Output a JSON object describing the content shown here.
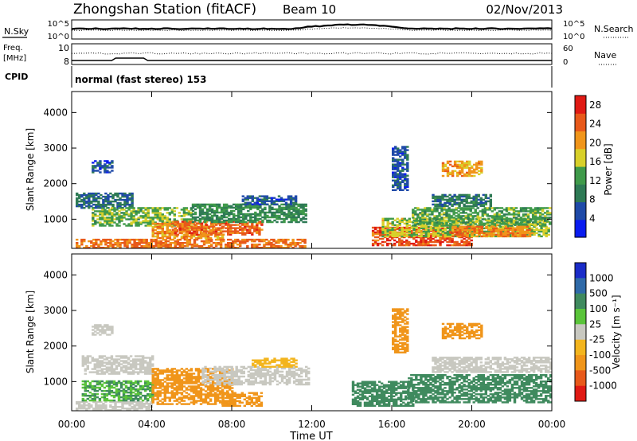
{
  "header": {
    "title": "Zhongshan Station (fitACF)",
    "beam": "Beam 10",
    "date": "02/Nov/2013"
  },
  "top_panels": {
    "nsky_label": "N.Sky",
    "nsky_ticks": [
      "10^5",
      "10^0"
    ],
    "nsearch_label": "N.Search",
    "nsearch_ticks": [
      "10^5",
      "10^0"
    ],
    "freq_label_1": "Freq.",
    "freq_label_2": "[MHz]",
    "freq_ticks": [
      "10",
      "8"
    ],
    "nave_label": "Nave",
    "nave_ticks": [
      "60",
      "0"
    ],
    "cpid_label": "CPID",
    "cpid_text": "normal (fast stereo) 153"
  },
  "colors": {
    "power_scale": [
      "#0a1cf0",
      "#1f4aa8",
      "#2e7a55",
      "#3f9a4a",
      "#d8d02a",
      "#f0951a",
      "#e8591a",
      "#e01a14"
    ],
    "velocity_scale": [
      "#e01a14",
      "#e8591a",
      "#f0951a",
      "#f3b51e",
      "#c8c8c0",
      "#5ac43a",
      "#3f8a5e",
      "#2f6aa8",
      "#1a2cc8"
    ]
  },
  "chart_data": [
    {
      "type": "heatmap",
      "panel": "power",
      "ylabel": "Slant Range [km]",
      "xlabel": "Time UT",
      "x_ticks": [
        "00:00",
        "04:00",
        "08:00",
        "12:00",
        "16:00",
        "20:00",
        "00:00"
      ],
      "y_ticks": [
        "1000",
        "2000",
        "3000",
        "4000"
      ],
      "ylim": [
        180,
        4590
      ],
      "colorbar_label": "Power [dB]",
      "colorbar_ticks": [
        "4",
        "8",
        "12",
        "16",
        "20",
        "24",
        "28"
      ],
      "colorbar_range": [
        0,
        30
      ],
      "regions": [
        {
          "t0": 0.2,
          "t1": 11.7,
          "r0": 180,
          "r1": 420,
          "v": 23
        },
        {
          "t0": 0.2,
          "t1": 3.0,
          "r0": 1300,
          "r1": 1750,
          "v": 8
        },
        {
          "t0": 1.0,
          "t1": 6.0,
          "r0": 800,
          "r1": 1300,
          "v": 14
        },
        {
          "t0": 4.0,
          "t1": 7.5,
          "r0": 450,
          "r1": 900,
          "v": 21
        },
        {
          "t0": 5.0,
          "t1": 9.5,
          "r0": 550,
          "r1": 950,
          "v": 24
        },
        {
          "t0": 6.0,
          "t1": 11.7,
          "r0": 900,
          "r1": 1400,
          "v": 11
        },
        {
          "t0": 8.5,
          "t1": 11.2,
          "r0": 1400,
          "r1": 1650,
          "v": 6
        },
        {
          "t0": 1.0,
          "t1": 2.0,
          "r0": 2300,
          "r1": 2650,
          "v": 6
        },
        {
          "t0": 15.0,
          "t1": 20.0,
          "r0": 250,
          "r1": 750,
          "v": 25
        },
        {
          "t0": 15.5,
          "t1": 23.9,
          "r0": 500,
          "r1": 1000,
          "v": 16
        },
        {
          "t0": 17.0,
          "t1": 23.9,
          "r0": 800,
          "r1": 1300,
          "v": 13
        },
        {
          "t0": 16.0,
          "t1": 16.8,
          "r0": 1800,
          "r1": 3050,
          "v": 6
        },
        {
          "t0": 18.5,
          "t1": 20.5,
          "r0": 2200,
          "r1": 2650,
          "v": 20
        },
        {
          "t0": 18.0,
          "t1": 21.0,
          "r0": 1350,
          "r1": 1700,
          "v": 9
        },
        {
          "t0": 19.0,
          "t1": 23.0,
          "r0": 500,
          "r1": 800,
          "v": 22
        }
      ]
    },
    {
      "type": "heatmap",
      "panel": "velocity",
      "ylabel": "Slant Range [km]",
      "xlabel": "Time UT",
      "x_ticks": [
        "00:00",
        "04:00",
        "08:00",
        "12:00",
        "16:00",
        "20:00",
        "00:00"
      ],
      "y_ticks": [
        "1000",
        "2000",
        "3000",
        "4000"
      ],
      "ylim": [
        180,
        4590
      ],
      "colorbar_label": "Velocity [m s⁻¹]",
      "colorbar_ticks": [
        "1000",
        "500",
        "100",
        "25",
        "-25",
        "-100",
        "-500",
        "-1000"
      ],
      "regions": [
        {
          "t0": 0.2,
          "t1": 4.0,
          "r0": 180,
          "r1": 450,
          "v": -20
        },
        {
          "t0": 0.5,
          "t1": 4.0,
          "r0": 450,
          "r1": 1000,
          "v": 100
        },
        {
          "t0": 0.5,
          "t1": 4.0,
          "r0": 1200,
          "r1": 1700,
          "v": 15
        },
        {
          "t0": 4.0,
          "t1": 8.0,
          "r0": 350,
          "r1": 1350,
          "v": -200
        },
        {
          "t0": 7.5,
          "t1": 9.5,
          "r0": 300,
          "r1": 700,
          "v": -120
        },
        {
          "t0": 6.5,
          "t1": 11.8,
          "r0": 900,
          "r1": 1400,
          "v": 10
        },
        {
          "t0": 9.0,
          "t1": 11.2,
          "r0": 1400,
          "r1": 1650,
          "v": -40
        },
        {
          "t0": 1.0,
          "t1": 2.0,
          "r0": 2300,
          "r1": 2600,
          "v": 15
        },
        {
          "t0": 14.0,
          "t1": 17.0,
          "r0": 300,
          "r1": 1000,
          "v": 200
        },
        {
          "t0": 16.8,
          "t1": 23.9,
          "r0": 400,
          "r1": 1200,
          "v": 120
        },
        {
          "t0": 16.0,
          "t1": 16.8,
          "r0": 1800,
          "r1": 3050,
          "v": -120
        },
        {
          "t0": 18.5,
          "t1": 20.5,
          "r0": 2200,
          "r1": 2650,
          "v": -200
        },
        {
          "t0": 18.0,
          "t1": 23.9,
          "r0": 1250,
          "r1": 1700,
          "v": 15
        }
      ]
    }
  ]
}
